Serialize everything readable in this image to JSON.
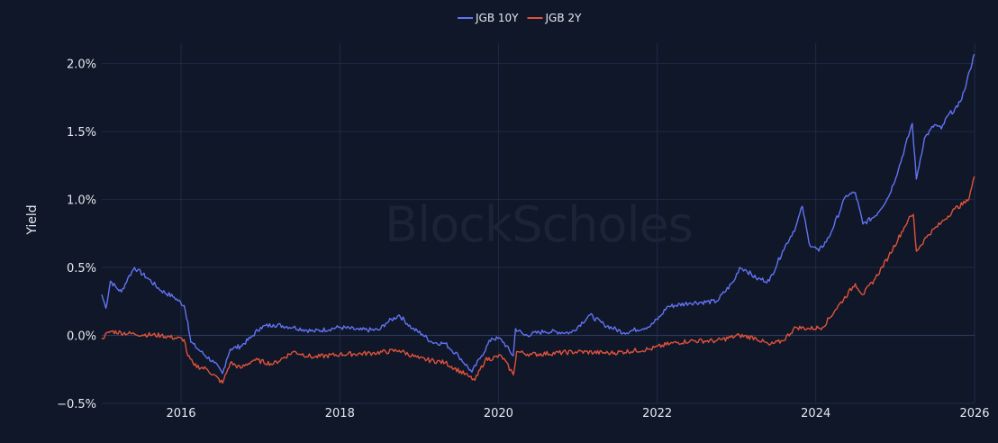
{
  "watermark": "BlockScholes",
  "chart_data": {
    "type": "line",
    "title": "",
    "xlabel": "",
    "ylabel": "Yield",
    "x_ticks": [
      "2016",
      "2018",
      "2020",
      "2022",
      "2024",
      "2026"
    ],
    "y_ticks": [
      "−0.5%",
      "0.0%",
      "0.5%",
      "1.0%",
      "1.5%",
      "2.0%"
    ],
    "xlim": [
      "2015-01-01",
      "2026-01-01"
    ],
    "ylim": [
      -0.5,
      2.15
    ],
    "grid": true,
    "legend_position": "top-center",
    "colors": {
      "JGB 10Y": "#6373f2",
      "JGB 2Y": "#e0523a",
      "background": "#0f1729",
      "grid": "#1f2b45"
    },
    "series": [
      {
        "name": "JGB 10Y",
        "points": [
          [
            "2015-01-01",
            0.3
          ],
          [
            "2015-01-20",
            0.2
          ],
          [
            "2015-02-10",
            0.4
          ],
          [
            "2015-03-10",
            0.35
          ],
          [
            "2015-04-01",
            0.32
          ],
          [
            "2015-05-01",
            0.42
          ],
          [
            "2015-06-01",
            0.5
          ],
          [
            "2015-06-15",
            0.48
          ],
          [
            "2015-08-01",
            0.42
          ],
          [
            "2015-10-01",
            0.33
          ],
          [
            "2015-12-01",
            0.28
          ],
          [
            "2016-01-15",
            0.22
          ],
          [
            "2016-02-01",
            0.1
          ],
          [
            "2016-02-15",
            -0.05
          ],
          [
            "2016-04-01",
            -0.12
          ],
          [
            "2016-06-01",
            -0.2
          ],
          [
            "2016-07-10",
            -0.28
          ],
          [
            "2016-07-28",
            -0.18
          ],
          [
            "2016-08-15",
            -0.1
          ],
          [
            "2016-10-01",
            -0.08
          ],
          [
            "2016-11-15",
            -0.02
          ],
          [
            "2017-01-01",
            0.06
          ],
          [
            "2017-03-01",
            0.08
          ],
          [
            "2017-06-01",
            0.06
          ],
          [
            "2017-09-01",
            0.03
          ],
          [
            "2018-01-01",
            0.06
          ],
          [
            "2018-04-01",
            0.04
          ],
          [
            "2018-07-01",
            0.04
          ],
          [
            "2018-08-01",
            0.09
          ],
          [
            "2018-10-01",
            0.15
          ],
          [
            "2018-12-01",
            0.05
          ],
          [
            "2019-01-15",
            0.01
          ],
          [
            "2019-03-01",
            -0.05
          ],
          [
            "2019-05-01",
            -0.06
          ],
          [
            "2019-07-01",
            -0.15
          ],
          [
            "2019-09-01",
            -0.27
          ],
          [
            "2019-10-15",
            -0.15
          ],
          [
            "2019-12-01",
            -0.02
          ],
          [
            "2020-01-15",
            -0.03
          ],
          [
            "2020-03-09",
            -0.15
          ],
          [
            "2020-03-20",
            0.05
          ],
          [
            "2020-05-01",
            0.0
          ],
          [
            "2020-08-01",
            0.03
          ],
          [
            "2020-12-01",
            0.02
          ],
          [
            "2021-02-25",
            0.15
          ],
          [
            "2021-05-01",
            0.08
          ],
          [
            "2021-08-01",
            0.02
          ],
          [
            "2021-12-01",
            0.07
          ],
          [
            "2022-01-15",
            0.14
          ],
          [
            "2022-02-15",
            0.21
          ],
          [
            "2022-06-01",
            0.24
          ],
          [
            "2022-10-01",
            0.25
          ],
          [
            "2022-12-20",
            0.4
          ],
          [
            "2023-01-15",
            0.5
          ],
          [
            "2023-02-15",
            0.48
          ],
          [
            "2023-04-01",
            0.42
          ],
          [
            "2023-06-01",
            0.4
          ],
          [
            "2023-08-01",
            0.62
          ],
          [
            "2023-10-01",
            0.8
          ],
          [
            "2023-10-31",
            0.95
          ],
          [
            "2023-12-01",
            0.68
          ],
          [
            "2024-01-15",
            0.62
          ],
          [
            "2024-03-01",
            0.72
          ],
          [
            "2024-05-20",
            1.03
          ],
          [
            "2024-07-01",
            1.05
          ],
          [
            "2024-08-05",
            0.82
          ],
          [
            "2024-10-01",
            0.88
          ],
          [
            "2024-12-01",
            1.02
          ],
          [
            "2025-01-15",
            1.22
          ],
          [
            "2025-03-20",
            1.56
          ],
          [
            "2025-04-08",
            1.15
          ],
          [
            "2025-05-15",
            1.45
          ],
          [
            "2025-07-01",
            1.55
          ],
          [
            "2025-08-01",
            1.52
          ],
          [
            "2025-09-01",
            1.62
          ],
          [
            "2025-10-15",
            1.68
          ],
          [
            "2025-11-15",
            1.8
          ],
          [
            "2025-12-10",
            1.95
          ],
          [
            "2025-12-31",
            2.07
          ]
        ]
      },
      {
        "name": "JGB 2Y",
        "points": [
          [
            "2015-01-01",
            -0.02
          ],
          [
            "2015-02-10",
            0.03
          ],
          [
            "2015-06-01",
            0.01
          ],
          [
            "2015-10-01",
            0.0
          ],
          [
            "2016-01-15",
            -0.03
          ],
          [
            "2016-02-01",
            -0.15
          ],
          [
            "2016-03-01",
            -0.22
          ],
          [
            "2016-05-01",
            -0.25
          ],
          [
            "2016-07-10",
            -0.35
          ],
          [
            "2016-08-15",
            -0.2
          ],
          [
            "2016-10-01",
            -0.24
          ],
          [
            "2016-12-01",
            -0.18
          ],
          [
            "2017-03-01",
            -0.21
          ],
          [
            "2017-06-01",
            -0.12
          ],
          [
            "2017-09-01",
            -0.16
          ],
          [
            "2018-01-01",
            -0.14
          ],
          [
            "2018-06-01",
            -0.13
          ],
          [
            "2018-10-01",
            -0.11
          ],
          [
            "2019-01-01",
            -0.17
          ],
          [
            "2019-05-01",
            -0.2
          ],
          [
            "2019-08-15",
            -0.3
          ],
          [
            "2019-09-15",
            -0.33
          ],
          [
            "2019-11-01",
            -0.18
          ],
          [
            "2020-01-15",
            -0.15
          ],
          [
            "2020-03-10",
            -0.29
          ],
          [
            "2020-03-25",
            -0.12
          ],
          [
            "2020-06-01",
            -0.14
          ],
          [
            "2021-01-01",
            -0.12
          ],
          [
            "2021-06-01",
            -0.13
          ],
          [
            "2021-12-01",
            -0.1
          ],
          [
            "2022-03-01",
            -0.06
          ],
          [
            "2022-06-01",
            -0.04
          ],
          [
            "2022-10-01",
            -0.04
          ],
          [
            "2023-01-15",
            0.0
          ],
          [
            "2023-04-01",
            -0.02
          ],
          [
            "2023-06-01",
            -0.07
          ],
          [
            "2023-08-01",
            -0.04
          ],
          [
            "2023-10-01",
            0.06
          ],
          [
            "2023-12-01",
            0.05
          ],
          [
            "2024-02-01",
            0.06
          ],
          [
            "2024-04-01",
            0.19
          ],
          [
            "2024-07-01",
            0.38
          ],
          [
            "2024-08-05",
            0.3
          ],
          [
            "2024-10-01",
            0.42
          ],
          [
            "2024-12-01",
            0.58
          ],
          [
            "2025-03-01",
            0.85
          ],
          [
            "2025-03-25",
            0.89
          ],
          [
            "2025-04-08",
            0.62
          ],
          [
            "2025-06-01",
            0.74
          ],
          [
            "2025-08-01",
            0.83
          ],
          [
            "2025-10-01",
            0.93
          ],
          [
            "2025-12-01",
            0.99
          ],
          [
            "2025-12-31",
            1.17
          ]
        ]
      }
    ]
  }
}
